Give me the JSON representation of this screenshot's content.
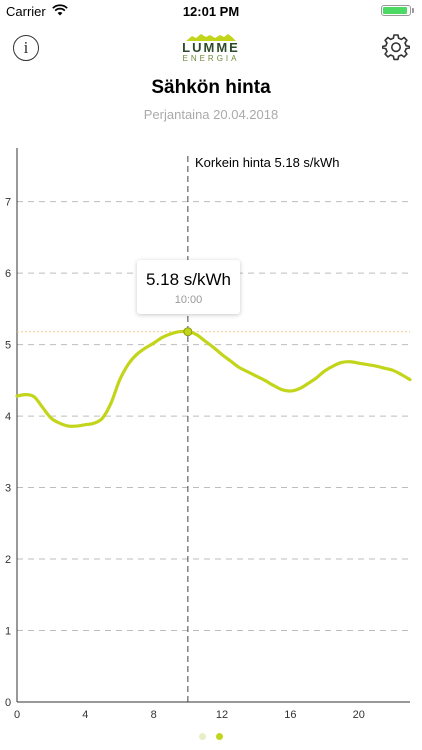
{
  "status_bar": {
    "carrier": "Carrier",
    "time": "12:01 PM"
  },
  "header": {
    "logo_title": "LUMME",
    "logo_subtitle": "ENERGIA",
    "info_label": "i",
    "info_icon": "info-circle-icon",
    "settings_icon": "gear-icon"
  },
  "page": {
    "title": "Sähkön hinta",
    "date": "Perjantaina 20.04.2018"
  },
  "tooltip": {
    "value": "5.18 s/kWh",
    "time": "10:00"
  },
  "annotation": "Korkein hinta 5.18 s/kWh",
  "pager": {
    "pages": 2,
    "current": 1
  },
  "colors": {
    "line": "#c3d51a",
    "accent": "#6e8a3a"
  },
  "chart_data": {
    "type": "line",
    "x": [
      0,
      0.5,
      1,
      1.5,
      2,
      2.5,
      3,
      3.5,
      4,
      4.5,
      5,
      5.5,
      6,
      6.5,
      7,
      7.5,
      8,
      8.5,
      9,
      9.5,
      10,
      10.5,
      11,
      11.5,
      12,
      12.5,
      13,
      13.5,
      14,
      14.5,
      15,
      15.5,
      16,
      16.5,
      17,
      17.5,
      18,
      18.5,
      19,
      19.5,
      20,
      20.5,
      21,
      21.5,
      22,
      22.5,
      23
    ],
    "series": [
      {
        "values": [
          4.28,
          4.3,
          4.27,
          4.12,
          3.97,
          3.9,
          3.86,
          3.86,
          3.88,
          3.9,
          3.97,
          4.18,
          4.5,
          4.72,
          4.86,
          4.95,
          5.02,
          5.1,
          5.15,
          5.18,
          5.18,
          5.14,
          5.05,
          4.96,
          4.86,
          4.77,
          4.68,
          4.62,
          4.56,
          4.5,
          4.43,
          4.37,
          4.35,
          4.38,
          4.45,
          4.53,
          4.63,
          4.7,
          4.75,
          4.76,
          4.74,
          4.72,
          4.7,
          4.67,
          4.64,
          4.58,
          4.51
        ]
      }
    ],
    "highlight": {
      "x": 10,
      "y": 5.18
    },
    "ylim": [
      0,
      7.75
    ],
    "xlim": [
      0,
      23
    ],
    "y_ticks": [
      0,
      1,
      2,
      3,
      4,
      5,
      6,
      7
    ],
    "x_ticks": [
      0,
      4,
      8,
      12,
      16,
      20
    ],
    "grid": "horizontal dashed"
  }
}
